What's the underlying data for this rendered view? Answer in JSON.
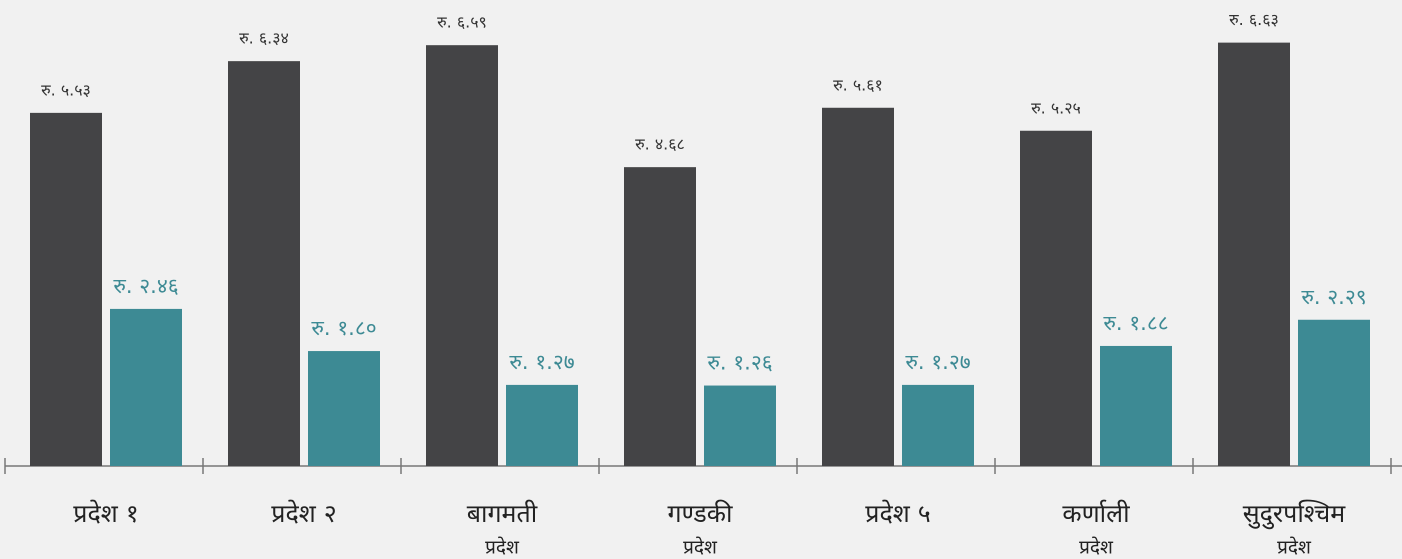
{
  "chart_data": {
    "type": "bar",
    "categories": [
      [
        "प्रदेश १"
      ],
      [
        "प्रदेश २"
      ],
      [
        "बागमती",
        "प्रदेश"
      ],
      [
        "गण्डकी",
        "प्रदेश"
      ],
      [
        "प्रदेश ५"
      ],
      [
        "कर्णाली",
        "प्रदेश"
      ],
      [
        "सुदुरपश्चिम",
        "प्रदेश"
      ]
    ],
    "series": [
      {
        "color": "#444446",
        "values": [
          5.53,
          6.34,
          6.59,
          4.68,
          5.61,
          5.25,
          6.63
        ],
        "value_labels": [
          "रु. ५.५३",
          "रु. ६.३४",
          "रु. ६.५९",
          "रु. ४.६८",
          "रु. ५.६१",
          "रु. ५.२५",
          "रु. ६.६३"
        ]
      },
      {
        "color": "#3d8a94",
        "values": [
          2.46,
          1.8,
          1.27,
          1.26,
          1.27,
          1.88,
          2.29
        ],
        "value_labels": [
          "रु. २.४६",
          "रु. १.८०",
          "रु. १.२७",
          "रु. १.२६",
          "रु. १.२७",
          "रु. १.८८",
          "रु. २.२९"
        ]
      }
    ],
    "ylim": [
      0,
      7
    ]
  }
}
